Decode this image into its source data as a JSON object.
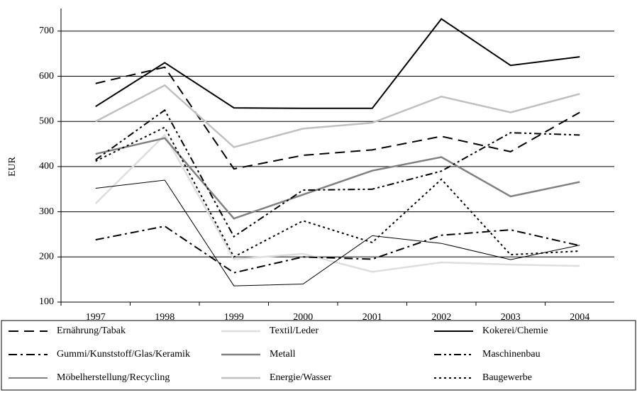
{
  "chart_data": {
    "type": "line",
    "y_label": "EUR",
    "categories": [
      "1997",
      "1998",
      "1999",
      "2000",
      "2001",
      "2002",
      "2003",
      "2004"
    ],
    "ylim": [
      100,
      750
    ],
    "yticks": [
      100,
      200,
      300,
      400,
      500,
      600,
      700
    ],
    "grid": true,
    "series": [
      {
        "name": "Ernährung/Tabak",
        "color": "#000000",
        "dash": "14 8",
        "width": 2,
        "values": [
          584,
          620,
          395,
          425,
          437,
          467,
          433,
          520
        ]
      },
      {
        "name": "Textil/Leder",
        "color": "#dedede",
        "dash": "",
        "width": 2.5,
        "values": [
          318,
          470,
          195,
          207,
          167,
          188,
          183,
          180
        ]
      },
      {
        "name": "Kokerei/Chemie",
        "color": "#000000",
        "dash": "",
        "width": 2,
        "values": [
          533,
          630,
          530,
          529,
          529,
          727,
          624,
          643
        ]
      },
      {
        "name": "Gummi/Kunststoff/Glas/Keramik",
        "color": "#000000",
        "dash": "12 5 3 5",
        "width": 2,
        "values": [
          238,
          268,
          165,
          200,
          195,
          248,
          260,
          225
        ]
      },
      {
        "name": "Metall",
        "color": "#808080",
        "dash": "",
        "width": 2.5,
        "values": [
          428,
          463,
          285,
          338,
          391,
          421,
          334,
          366
        ]
      },
      {
        "name": "Maschinenbau",
        "color": "#000000",
        "dash": "10 4 3 4 3 4",
        "width": 2,
        "values": [
          415,
          525,
          245,
          348,
          350,
          390,
          475,
          470
        ]
      },
      {
        "name": "Möbelherstellung/Recycling",
        "color": "#000000",
        "dash": "",
        "width": 1,
        "values": [
          352,
          370,
          136,
          140,
          247,
          230,
          194,
          226
        ]
      },
      {
        "name": "Energie/Wasser",
        "color": "#c0c0c0",
        "dash": "",
        "width": 2.5,
        "values": [
          500,
          580,
          443,
          484,
          497,
          555,
          520,
          561
        ]
      },
      {
        "name": "Baugewerbe",
        "color": "#000000",
        "dash": "3 4",
        "width": 2,
        "values": [
          412,
          487,
          200,
          280,
          232,
          372,
          205,
          213
        ]
      }
    ]
  }
}
